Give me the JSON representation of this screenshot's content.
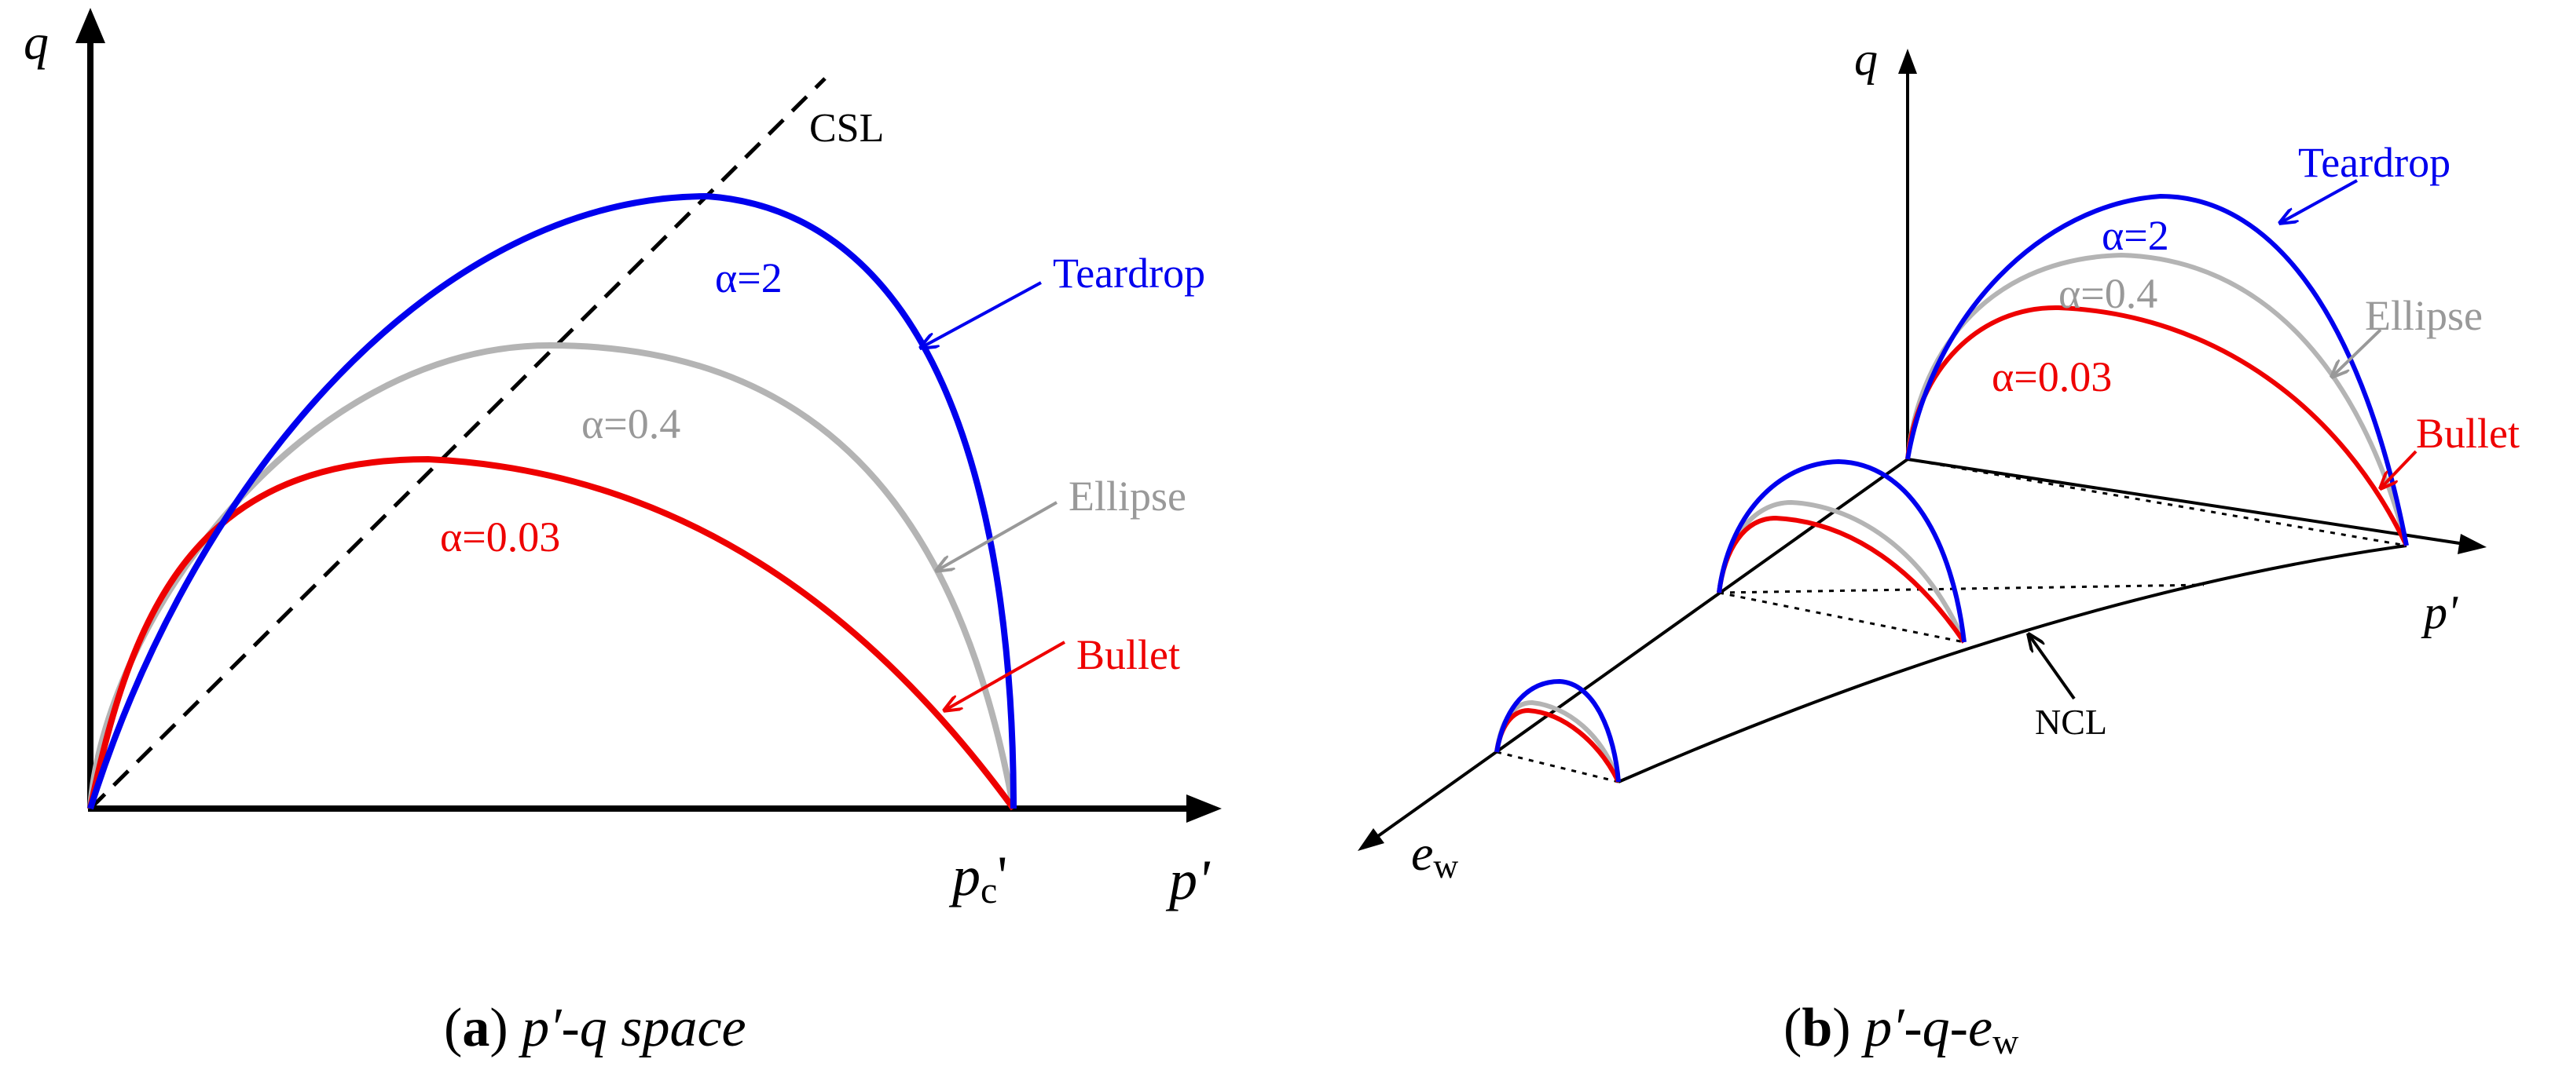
{
  "panel_a": {
    "axis_q": "q",
    "axis_p": "p'",
    "pc_label_main": "p",
    "pc_label_sub": "c",
    "pc_label_prime": "'",
    "csl": "CSL",
    "teardrop": "Teardrop",
    "ellipse": "Ellipse",
    "bullet": "Bullet",
    "alpha_teardrop": "α=2",
    "alpha_ellipse": "α=0.4",
    "alpha_bullet": "α=0.03"
  },
  "panel_b": {
    "axis_q": "q",
    "axis_p": "p'",
    "axis_e_main": "e",
    "axis_e_sub": "w",
    "ncl": "NCL",
    "teardrop": "Teardrop",
    "ellipse": "Ellipse",
    "bullet": "Bullet",
    "alpha_teardrop": "α=2",
    "alpha_ellipse": "α=0.4",
    "alpha_bullet": "α=0.03"
  },
  "captions": {
    "a_letter": "a",
    "a_text": "p′-q space",
    "b_letter": "b",
    "b_text": "p′-q-e",
    "b_sub": "w"
  },
  "colors": {
    "teardrop": "#0000ee",
    "ellipse": "#b4b4b4",
    "bullet": "#ee0000",
    "axis": "#000000"
  }
}
